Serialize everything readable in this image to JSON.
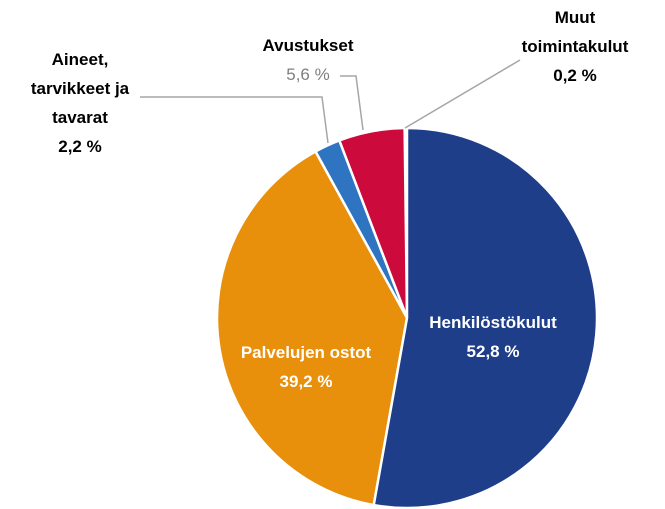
{
  "chart_data": {
    "type": "pie",
    "categories": [
      "Henkilöstökulut",
      "Palvelujen ostot",
      "Aineet, tarvikkeet ja tavarat",
      "Avustukset",
      "Muut toimintakulut"
    ],
    "values": [
      52.8,
      39.2,
      2.2,
      5.6,
      0.2
    ],
    "value_labels": [
      "52,8 %",
      "39,2 %",
      "2,2 %",
      "5,6 %",
      "0,2 %"
    ],
    "colors": [
      "#1f3e8a",
      "#e8900c",
      "#2e74c0",
      "#cc0a3c",
      "#a6a6a6"
    ]
  }
}
